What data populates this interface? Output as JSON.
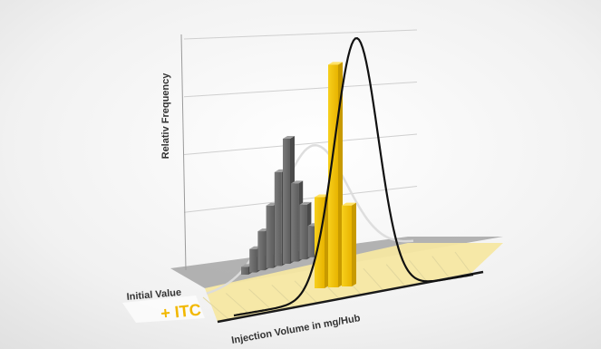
{
  "chart_data": {
    "type": "bar",
    "ylabel": "Relativ Frequency",
    "xlabel": "Injection Volume in mg/Hub",
    "series": [
      {
        "name": "Initial Value",
        "color": "#6e6e6e",
        "values": [
          1,
          3,
          5,
          8,
          12,
          16,
          10,
          7,
          4
        ],
        "curve": "normal fit (light grey)"
      },
      {
        "name": "+ ITC",
        "color": "#f2c200",
        "values": [
          9,
          22,
          8
        ],
        "curve": "normal fit (black)"
      }
    ],
    "ylim": [
      0,
      24
    ],
    "grid": true,
    "legend_position": "left, along the depth axis"
  }
}
